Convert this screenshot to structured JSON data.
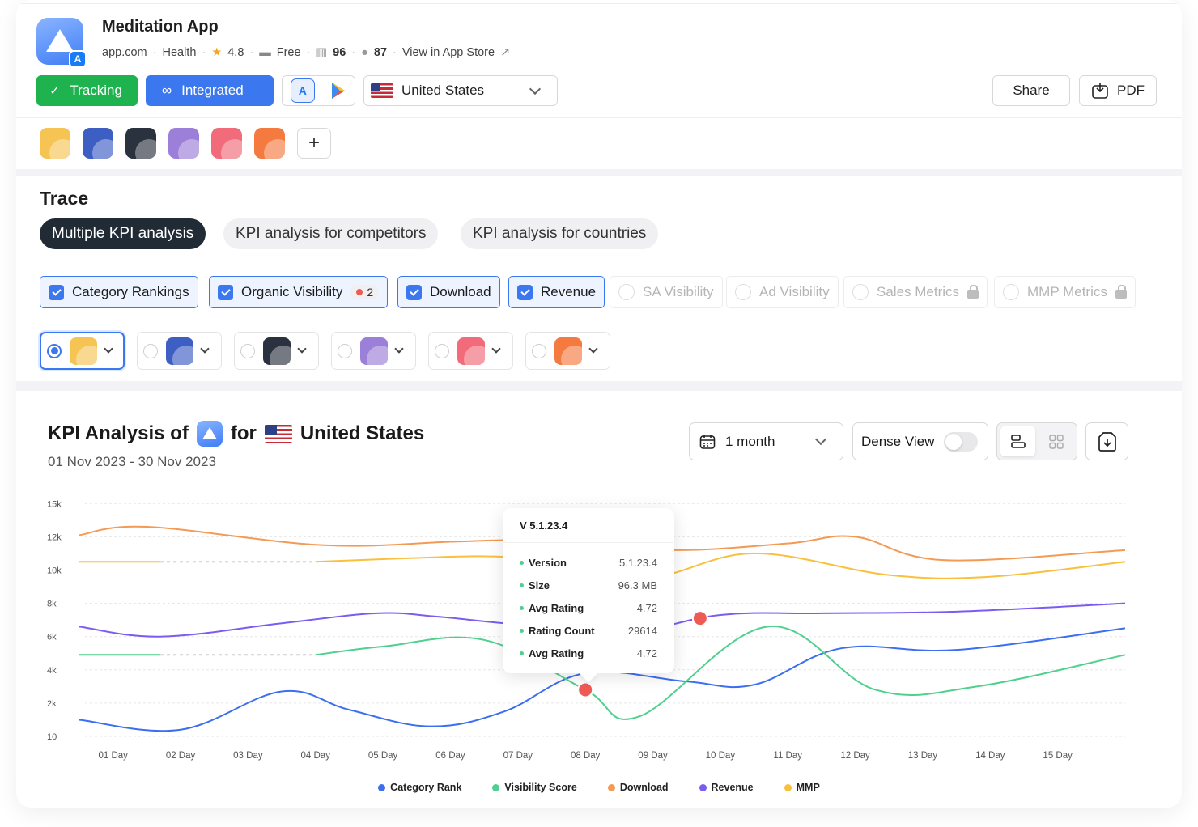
{
  "app": {
    "title": "Meditation App",
    "domain": "app.com",
    "category": "Health",
    "rating": "4.8",
    "price": "Free",
    "metric1": "96",
    "metric2": "87",
    "store_link": "View in App Store"
  },
  "toolbar": {
    "tracking_label": "Tracking",
    "integrated_label": "Integrated",
    "country": "United States",
    "share_label": "Share",
    "pdf_label": "PDF"
  },
  "competitors": {
    "colors": [
      "#f6c453",
      "#3d5fc4",
      "#2a3240",
      "#9b7fd8",
      "#f26b7a",
      "#f47a3f"
    ]
  },
  "trace": {
    "title": "Trace",
    "tabs": [
      "Multiple KPI analysis",
      "KPI analysis for competitors",
      "KPI analysis for countries"
    ]
  },
  "kpis": {
    "enabled": [
      "Category Rankings",
      "Organic Visibility",
      "Download",
      "Revenue"
    ],
    "organic_badge": "2",
    "disabled": [
      "SA Visibility",
      "Ad Visibility",
      "Sales Metrics",
      "MMP Metrics"
    ]
  },
  "analysis": {
    "title_prefix": "KPI Analysis of",
    "title_for": "for",
    "country": "United States",
    "date_range": "01 Nov 2023 - 30 Nov 2023",
    "period": "1 month",
    "dense_view": "Dense View"
  },
  "tooltip": {
    "title": "V 5.1.23.4",
    "rows": [
      {
        "label": "Version",
        "value": "5.1.23.4"
      },
      {
        "label": "Size",
        "value": "96.3 MB"
      },
      {
        "label": "Avg Rating",
        "value": "4.72"
      },
      {
        "label": "Rating Count",
        "value": "29614"
      },
      {
        "label": "Avg Rating",
        "value": "4.72"
      }
    ]
  },
  "chart_data": {
    "type": "line",
    "y_ticks": [
      "15k",
      "12k",
      "10k",
      "8k",
      "6k",
      "4k",
      "2k",
      "10"
    ],
    "categories": [
      "01 Day",
      "02 Day",
      "03 Day",
      "04 Day",
      "05 Day",
      "06 Day",
      "07  Day",
      "08 Day",
      "09 Day",
      "10 Day",
      "11 Day",
      "12 Day",
      "13 Day",
      "14 Day",
      "15 Day"
    ],
    "x": [
      0.5,
      1.5,
      2.5,
      3.5,
      4.5,
      5.5,
      6.5,
      7.5,
      8.5,
      9.5,
      10.5,
      11.5,
      12.5,
      13.5,
      14.5
    ],
    "y_axis_levels": [
      14.0,
      12.0,
      10.0,
      8.0,
      6.0,
      4.0,
      2.0,
      0.0
    ],
    "ylim": [
      0,
      14.5
    ],
    "grid": true,
    "legend_position": "bottom",
    "series": [
      {
        "name": "Category Rank",
        "color": "#3c6ff0",
        "points": [
          [
            0,
            1.0
          ],
          [
            1.5,
            0.4
          ],
          [
            3.0,
            2.7
          ],
          [
            4.0,
            1.6
          ],
          [
            5.2,
            0.6
          ],
          [
            6.3,
            1.5
          ],
          [
            7.5,
            3.8
          ],
          [
            9.0,
            3.3
          ],
          [
            10.0,
            3.1
          ],
          [
            11.3,
            5.3
          ],
          [
            13.0,
            5.2
          ],
          [
            15.5,
            6.5
          ]
        ]
      },
      {
        "name": "Visibility Score",
        "color": "#4fd08e",
        "dashed_x": [
          1.2,
          3.5
        ],
        "points": [
          [
            0,
            4.9
          ],
          [
            1.2,
            4.9
          ],
          [
            3.5,
            4.9
          ],
          [
            4.5,
            5.4
          ],
          [
            6.0,
            5.8
          ],
          [
            7.5,
            2.8
          ],
          [
            8.3,
            1.2
          ],
          [
            10.2,
            6.6
          ],
          [
            11.8,
            2.8
          ],
          [
            13.3,
            3.0
          ],
          [
            15.5,
            4.9
          ]
        ]
      },
      {
        "name": "Download",
        "color": "#f39a55",
        "points": [
          [
            0,
            12.1
          ],
          [
            1.0,
            12.6
          ],
          [
            3.6,
            11.5
          ],
          [
            5.5,
            11.7
          ],
          [
            6.3,
            11.8
          ],
          [
            7.5,
            11.8
          ],
          [
            8.8,
            11.2
          ],
          [
            10.5,
            11.6
          ],
          [
            11.5,
            12.0
          ],
          [
            12.8,
            10.6
          ],
          [
            15.5,
            11.2
          ]
        ]
      },
      {
        "name": "Revenue",
        "color": "#7a5cf0",
        "points": [
          [
            0,
            6.6
          ],
          [
            1.2,
            6.0
          ],
          [
            3.0,
            6.8
          ],
          [
            4.4,
            7.4
          ],
          [
            5.3,
            7.2
          ],
          [
            6.3,
            6.8
          ],
          [
            8.0,
            6.2
          ],
          [
            9.5,
            7.3
          ],
          [
            11.0,
            7.4
          ],
          [
            13.0,
            7.5
          ],
          [
            15.5,
            8.0
          ]
        ]
      },
      {
        "name": "MMP",
        "color": "#f8c03c",
        "dashed_x": [
          1.2,
          3.5
        ],
        "points": [
          [
            0,
            10.5
          ],
          [
            1.2,
            10.5
          ],
          [
            3.5,
            10.5
          ],
          [
            5.5,
            10.8
          ],
          [
            6.3,
            10.8
          ],
          [
            7.5,
            10.6
          ],
          [
            8.5,
            9.6
          ],
          [
            10.0,
            11.0
          ],
          [
            12.0,
            9.7
          ],
          [
            13.5,
            9.6
          ],
          [
            15.5,
            10.5
          ]
        ]
      }
    ],
    "markers": [
      {
        "series": "Visibility Score",
        "x": 7.5,
        "y": 2.8,
        "color": "#f05a55"
      },
      {
        "series": "Revenue",
        "x": 9.2,
        "y": 7.1,
        "color": "#f05a55"
      }
    ]
  },
  "legend": [
    "Category Rank",
    "Visibility Score",
    "Download",
    "Revenue",
    "MMP"
  ]
}
